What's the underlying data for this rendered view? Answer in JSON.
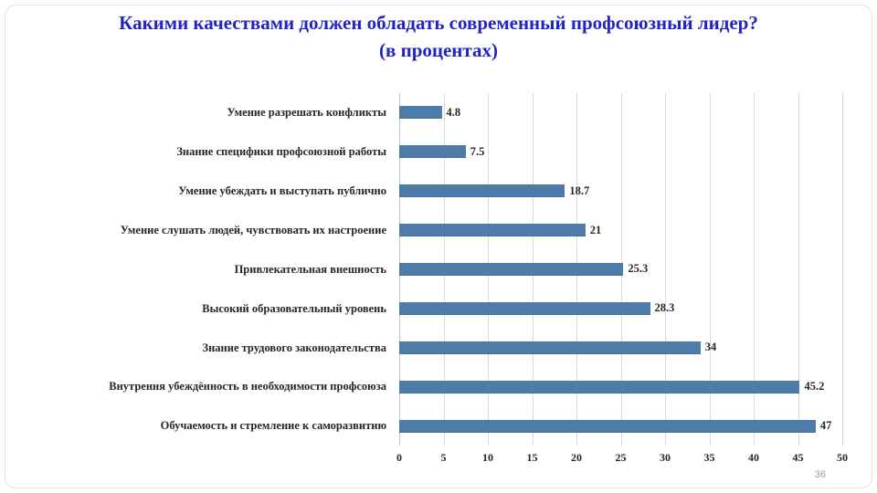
{
  "header": {
    "title": "Какими качествами должен обладать современный профсоюзный лидер?",
    "subtitle": "(в процентах)"
  },
  "footer": {
    "page_number": "36"
  },
  "colors": {
    "bar": "#4e7ca9",
    "title": "#2323c3",
    "grid": "#d9d9de",
    "text": "#262626",
    "page_number": "#9b9ba3"
  },
  "chart_data": {
    "type": "bar",
    "orientation": "horizontal",
    "title": "Какими качествами должен обладать современный профсоюзный лидер? (в процентах)",
    "categories": [
      "Умение разрешать конфликты",
      "Знание специфики профсоюзной работы",
      "Умение убеждать и выступать публично",
      "Умение слушать людей, чувствовать их настроение",
      "Привлекательная внешность",
      "Высокий образовательный уровень",
      "Знание трудового законодательства",
      "Внутрення убеждённость в необходимости профсоюза",
      "Обучаемость и стремление к саморазвитию"
    ],
    "values": [
      4.8,
      7.5,
      18.7,
      21,
      25.3,
      28.3,
      34,
      45.2,
      47
    ],
    "value_labels": [
      "4.8",
      "7.5",
      "18.7",
      "21",
      "25.3",
      "28.3",
      "34",
      "45.2",
      "47"
    ],
    "x_ticks": [
      0,
      5,
      10,
      15,
      20,
      25,
      30,
      35,
      40,
      45,
      50
    ],
    "xlim": [
      0,
      50
    ],
    "xlabel": "",
    "ylabel": "",
    "grid": true,
    "legend": false
  }
}
